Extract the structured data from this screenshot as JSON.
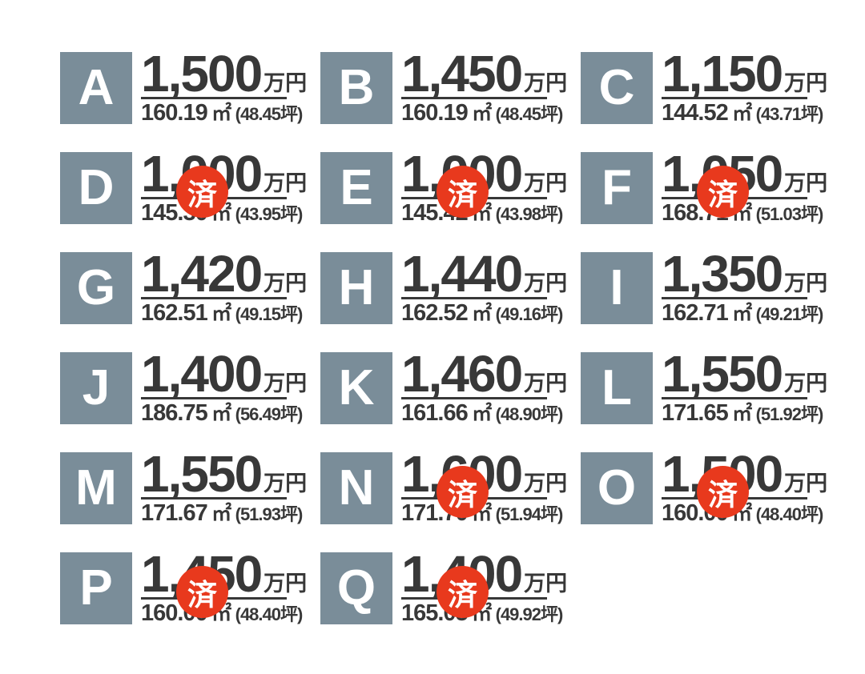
{
  "page": {
    "background": "#ffffff",
    "description_units": {
      "price_unit": "万円",
      "sqm_unit": "㎡",
      "tsubo_unit": "坪",
      "paren_open": "(",
      "paren_close": ")"
    }
  },
  "colors": {
    "tile_bg": "#7A8D99",
    "tile_letter": "#FFFFFF",
    "text": "#383838",
    "divider": "#383838",
    "badge_bg": "#E8391D",
    "badge_text": "#FFFFFF"
  },
  "sold_badge": {
    "label": "済"
  },
  "lots": [
    {
      "id": "A",
      "price": "1,500",
      "area_sqm": "160.19",
      "area_tsubo": "48.45",
      "sold": false
    },
    {
      "id": "B",
      "price": "1,450",
      "area_sqm": "160.19",
      "area_tsubo": "48.45",
      "sold": false
    },
    {
      "id": "C",
      "price": "1,150",
      "area_sqm": "144.52",
      "area_tsubo": "43.71",
      "sold": false
    },
    {
      "id": "D",
      "price": "1,000",
      "area_sqm": "145.30",
      "area_tsubo": "43.95",
      "sold": true
    },
    {
      "id": "E",
      "price": "1,000",
      "area_sqm": "145.42",
      "area_tsubo": "43.98",
      "sold": true
    },
    {
      "id": "F",
      "price": "1,050",
      "area_sqm": "168.71",
      "area_tsubo": "51.03",
      "sold": true
    },
    {
      "id": "G",
      "price": "1,420",
      "area_sqm": "162.51",
      "area_tsubo": "49.15",
      "sold": false
    },
    {
      "id": "H",
      "price": "1,440",
      "area_sqm": "162.52",
      "area_tsubo": "49.16",
      "sold": false
    },
    {
      "id": "I",
      "price": "1,350",
      "area_sqm": "162.71",
      "area_tsubo": "49.21",
      "sold": false
    },
    {
      "id": "J",
      "price": "1,400",
      "area_sqm": "186.75",
      "area_tsubo": "56.49",
      "sold": false
    },
    {
      "id": "K",
      "price": "1,460",
      "area_sqm": "161.66",
      "area_tsubo": "48.90",
      "sold": false
    },
    {
      "id": "L",
      "price": "1,550",
      "area_sqm": "171.65",
      "area_tsubo": "51.92",
      "sold": false
    },
    {
      "id": "M",
      "price": "1,550",
      "area_sqm": "171.67",
      "area_tsubo": "51.93",
      "sold": false
    },
    {
      "id": "N",
      "price": "1,600",
      "area_sqm": "171.70",
      "area_tsubo": "51.94",
      "sold": true
    },
    {
      "id": "O",
      "price": "1,500",
      "area_sqm": "160.00",
      "area_tsubo": "48.40",
      "sold": true
    },
    {
      "id": "P",
      "price": "1,450",
      "area_sqm": "160.00",
      "area_tsubo": "48.40",
      "sold": true
    },
    {
      "id": "Q",
      "price": "1,400",
      "area_sqm": "165.05",
      "area_tsubo": "49.92",
      "sold": true
    }
  ]
}
